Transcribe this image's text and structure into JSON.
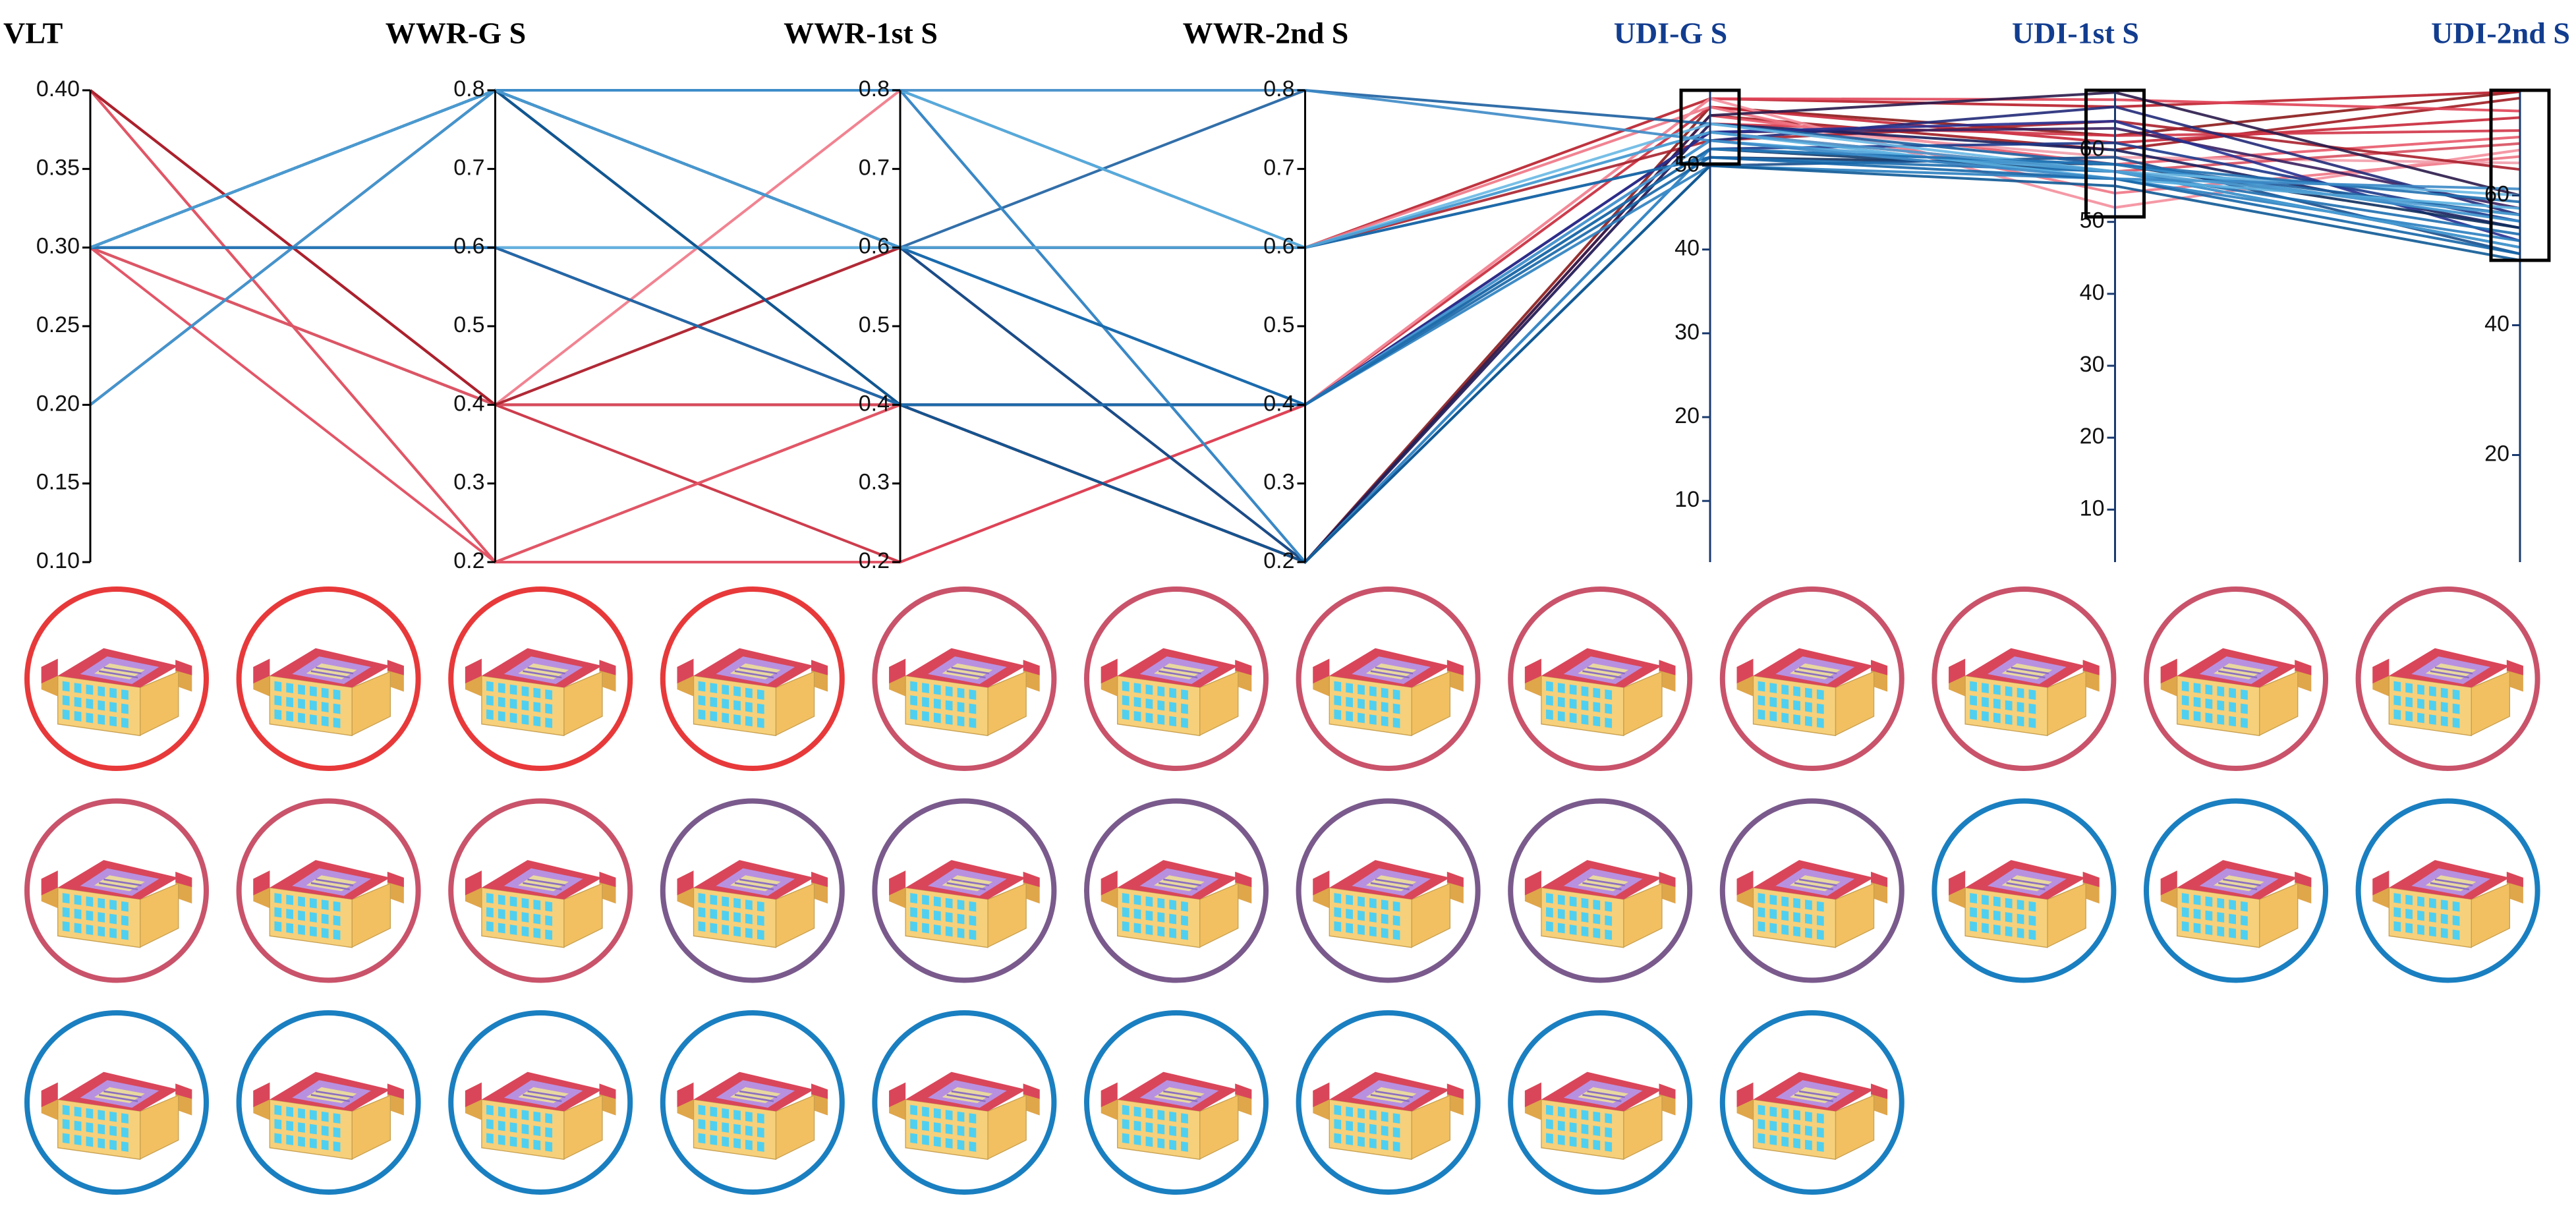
{
  "chart_data": {
    "type": "parallel",
    "axes": [
      {
        "title": "VLT",
        "title_color": "#000000",
        "axis_color": "#000000",
        "ylim": [
          0.1,
          0.4
        ],
        "yticks": [
          {
            "value": 0.1,
            "label": "0.10"
          },
          0.15,
          {
            "value": 0.2,
            "label": "0.20"
          },
          0.25,
          {
            "value": 0.3,
            "label": "0.30"
          },
          0.35,
          {
            "value": 0.4,
            "label": "0.40"
          }
        ]
      },
      {
        "title": "WWR-G S",
        "title_color": "#000000",
        "axis_color": "#000000",
        "ylim": [
          0.2,
          0.8
        ],
        "yticks": [
          0.2,
          0.3,
          0.4,
          0.5,
          0.6,
          0.7,
          0.8
        ]
      },
      {
        "title": "WWR-1st S",
        "title_color": "#000000",
        "axis_color": "#000000",
        "ylim": [
          0.2,
          0.8
        ],
        "yticks": [
          0.2,
          0.3,
          0.4,
          0.5,
          0.6,
          0.7,
          0.8
        ]
      },
      {
        "title": "WWR-2nd S",
        "title_color": "#000000",
        "axis_color": "#000000",
        "ylim": [
          0.2,
          0.8
        ],
        "yticks": [
          0.2,
          0.3,
          0.4,
          0.5,
          0.6,
          0.7,
          0.8
        ]
      },
      {
        "title": "UDI-G S",
        "title_color": "#123d8f",
        "axis_color": "#1a3a6e",
        "ylim": [
          2.7,
          59
        ],
        "yticks": [
          10,
          20,
          30,
          40,
          50
        ],
        "brush": [
          50.2,
          59
        ]
      },
      {
        "title": "UDI-1st S",
        "title_color": "#123d8f",
        "axis_color": "#1a3a6e",
        "ylim": [
          2.7,
          68.3
        ],
        "yticks": [
          10,
          20,
          30,
          40,
          50,
          60
        ],
        "brush": [
          50.7,
          68.3
        ]
      },
      {
        "title": "UDI-2nd S",
        "title_color": "#123d8f",
        "axis_color": "#1a3a6e",
        "ylim": [
          3.5,
          76.2
        ],
        "yticks": [
          20,
          40,
          60
        ],
        "brush": [
          50,
          76.2
        ]
      }
    ],
    "series": [
      {
        "color": "#8b1a1a",
        "values": [
          0.4,
          0.4,
          0.4,
          0.2,
          57,
          62,
          76
        ]
      },
      {
        "color": "#a01c22",
        "values": [
          0.4,
          0.2,
          0.4,
          0.2,
          56,
          60,
          75
        ]
      },
      {
        "color": "#b81e2a",
        "values": [
          0.3,
          0.4,
          0.6,
          0.6,
          58,
          66,
          76
        ]
      },
      {
        "color": "#c8283a",
        "values": [
          0.4,
          0.4,
          0.2,
          0.4,
          57,
          61,
          72
        ]
      },
      {
        "color": "#d03548",
        "values": [
          0.3,
          0.4,
          0.4,
          0.2,
          55,
          62,
          70
        ]
      },
      {
        "color": "#e04458",
        "values": [
          0.3,
          0.2,
          0.2,
          0.4,
          58,
          67,
          73
        ]
      },
      {
        "color": "#e85a6c",
        "values": [
          0.4,
          0.2,
          0.4,
          0.2,
          56,
          58,
          69
        ]
      },
      {
        "color": "#f07585",
        "values": [
          0.3,
          0.4,
          0.8,
          0.6,
          57,
          54,
          66
        ]
      },
      {
        "color": "#f48e9c",
        "values": [
          0.3,
          0.4,
          0.6,
          0.4,
          58,
          52,
          67
        ]
      },
      {
        "color": "#f2a0ac",
        "values": [
          0.3,
          0.6,
          0.4,
          0.2,
          55,
          59,
          65
        ]
      },
      {
        "color": "#d85060",
        "values": [
          0.3,
          0.4,
          0.4,
          0.4,
          54,
          57,
          68
        ]
      },
      {
        "color": "#a8202c",
        "values": [
          0.4,
          0.4,
          0.6,
          0.6,
          53,
          64,
          64
        ]
      },
      {
        "color": "#2a1a4a",
        "values": [
          0.3,
          0.6,
          0.4,
          0.2,
          56,
          68,
          60
        ]
      },
      {
        "color": "#3a2060",
        "values": [
          0.3,
          0.6,
          0.4,
          0.4,
          54,
          63,
          58
        ]
      },
      {
        "color": "#1a1f5c",
        "values": [
          0.3,
          0.8,
          0.6,
          0.2,
          55,
          60,
          55
        ]
      },
      {
        "color": "#222a78",
        "values": [
          0.3,
          0.8,
          0.4,
          0.4,
          53,
          66,
          57
        ]
      },
      {
        "color": "#283090",
        "values": [
          0.2,
          0.8,
          0.6,
          0.4,
          54,
          64,
          53
        ]
      },
      {
        "color": "#1c3a8c",
        "values": [
          0.3,
          0.8,
          0.8,
          0.2,
          52,
          61,
          56
        ]
      },
      {
        "color": "#0e2f5e",
        "values": [
          0.2,
          0.8,
          0.6,
          0.6,
          51,
          58,
          55
        ]
      },
      {
        "color": "#123d6e",
        "values": [
          0.3,
          0.8,
          0.4,
          0.4,
          52,
          57,
          52
        ]
      },
      {
        "color": "#1a4f8c",
        "values": [
          0.3,
          0.8,
          0.6,
          0.2,
          50,
          59,
          51
        ]
      },
      {
        "color": "#1c5fa0",
        "values": [
          0.3,
          0.6,
          0.6,
          0.8,
          55,
          58,
          57
        ]
      },
      {
        "color": "#1e6fb0",
        "values": [
          0.3,
          0.8,
          0.8,
          0.6,
          51,
          57,
          54
        ]
      },
      {
        "color": "#2a80c0",
        "values": [
          0.3,
          0.8,
          0.6,
          0.4,
          50,
          56,
          53
        ]
      },
      {
        "color": "#3a90cc",
        "values": [
          0.3,
          0.8,
          0.8,
          0.2,
          52,
          58,
          56
        ]
      },
      {
        "color": "#4aa0d8",
        "values": [
          0.2,
          0.8,
          0.6,
          0.4,
          53,
          57,
          52
        ]
      },
      {
        "color": "#5ab0e0",
        "values": [
          0.3,
          0.8,
          0.8,
          0.6,
          54,
          56,
          58
        ]
      },
      {
        "color": "#68b8e4",
        "values": [
          0.3,
          0.6,
          0.6,
          0.6,
          55,
          57,
          60
        ]
      },
      {
        "color": "#1566a8",
        "values": [
          0.3,
          0.8,
          0.6,
          0.4,
          51,
          56,
          51
        ]
      },
      {
        "color": "#0f5a96",
        "values": [
          0.3,
          0.8,
          0.4,
          0.2,
          50,
          55,
          50
        ]
      },
      {
        "color": "#2070b0",
        "values": [
          0.3,
          0.6,
          0.4,
          0.4,
          52,
          58,
          59
        ]
      },
      {
        "color": "#3c8ac6",
        "values": [
          0.3,
          0.8,
          0.8,
          0.8,
          53,
          56,
          61
        ]
      },
      {
        "color": "#4c9cd2",
        "values": [
          0.3,
          0.8,
          0.6,
          0.6,
          54,
          57,
          57
        ]
      }
    ],
    "icon_rings": [
      "#e8393a",
      "#e8393a",
      "#e8393a",
      "#e8393a",
      "#c9536a",
      "#c9536a",
      "#c9536a",
      "#c9536a",
      "#c9536a",
      "#c9536a",
      "#c9536a",
      "#c9536a",
      "#c9536a",
      "#c9536a",
      "#c9536a",
      "#7a5a8c",
      "#7a5a8c",
      "#7a5a8c",
      "#7a5a8c",
      "#7a5a8c",
      "#7a5a8c",
      "#1a7fc0",
      "#1a7fc0",
      "#1a7fc0",
      "#1a7fc0",
      "#1a7fc0",
      "#1a7fc0",
      "#1a7fc0",
      "#1a7fc0",
      "#1a7fc0",
      "#1a7fc0",
      "#1a7fc0",
      "#1a7fc0"
    ]
  }
}
